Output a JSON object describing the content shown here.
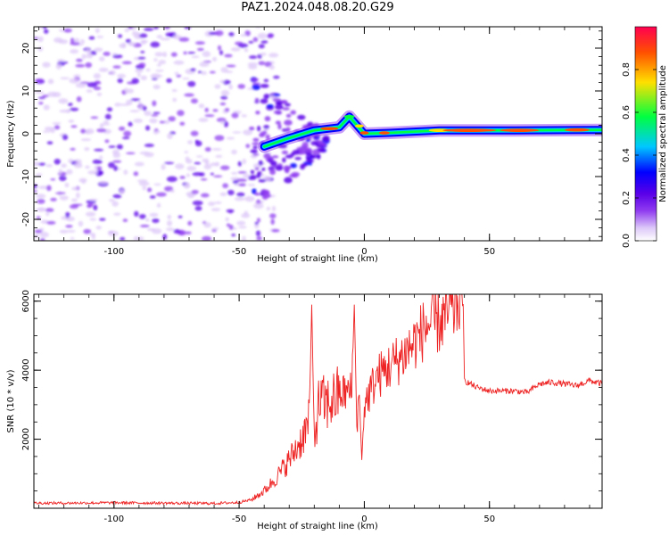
{
  "title": "PAZ1.2024.048.08.20.G29",
  "chart_data": [
    {
      "type": "heatmap",
      "xlabel": "Height of straight line (km)",
      "ylabel": "Frequency (Hz)",
      "xlim": [
        -132,
        95
      ],
      "ylim": [
        -25,
        25
      ],
      "xticks": [
        -100,
        -50,
        0,
        50
      ],
      "xtick_labels": [
        "-100",
        "-50",
        "0",
        "50"
      ],
      "yticks": [
        -20,
        -10,
        0,
        10,
        20
      ],
      "ytick_labels": [
        "-20",
        "-10",
        "0",
        "10",
        "20"
      ],
      "colorbar": {
        "label": "Normalized spectral amplitude",
        "range": [
          0.0,
          1.0
        ],
        "ticks": [
          0.0,
          0.2,
          0.4,
          0.6,
          0.8
        ],
        "tick_labels": [
          "0.0",
          "0.2",
          "0.4",
          "0.6",
          "0.8"
        ],
        "colormap": [
          "#ffffff",
          "#ddc8f8",
          "#8f3cf0",
          "#5a00e8",
          "#0000ff",
          "#00c8ff",
          "#00ff40",
          "#ffe000",
          "#ff5000",
          "#ff0050"
        ]
      },
      "features": {
        "noise_region_x": [
          -132,
          -45
        ],
        "transition_x": [
          -45,
          -15
        ],
        "carrier_trace": [
          {
            "x": -40,
            "y": -3
          },
          {
            "x": -30,
            "y": -1
          },
          {
            "x": -20,
            "y": 0.8
          },
          {
            "x": -10,
            "y": 1.5
          },
          {
            "x": -6,
            "y": 4
          },
          {
            "x": -3,
            "y": 2
          },
          {
            "x": 0,
            "y": 0
          },
          {
            "x": 10,
            "y": 0.2
          },
          {
            "x": 30,
            "y": 0.8
          },
          {
            "x": 60,
            "y": 0.8
          },
          {
            "x": 95,
            "y": 0.9
          }
        ]
      }
    },
    {
      "type": "line",
      "xlabel": "Height of straight line (km)",
      "ylabel": "SNR (10 * v/v)",
      "xlim": [
        -132,
        95
      ],
      "ylim": [
        0,
        6200
      ],
      "xticks": [
        -100,
        -50,
        0,
        50
      ],
      "xtick_labels": [
        "-100",
        "-50",
        "0",
        "50"
      ],
      "yticks": [
        2000,
        4000,
        6000
      ],
      "ytick_labels": [
        "2000",
        "4000",
        "6000"
      ],
      "line_color": "#ee2222",
      "series": [
        {
          "x": [
            -132,
            -120,
            -100,
            -80,
            -60,
            -50,
            -45,
            -40,
            -35,
            -30,
            -25,
            -22,
            -21,
            -20,
            -18,
            -15,
            -10,
            -5,
            -4,
            -3,
            -2,
            -1,
            0,
            5,
            10,
            15,
            20,
            25,
            30,
            35,
            38,
            39,
            39.5,
            40,
            45,
            50,
            60,
            65,
            70,
            75,
            80,
            85,
            90,
            95
          ],
          "values": [
            150,
            150,
            160,
            150,
            140,
            170,
            250,
            500,
            900,
            1400,
            2000,
            2500,
            5900,
            2000,
            3100,
            3000,
            3300,
            3400,
            5900,
            2500,
            3200,
            1400,
            3000,
            3800,
            4100,
            4400,
            4800,
            5300,
            5400,
            5700,
            6000,
            6200,
            5800,
            3700,
            3500,
            3400,
            3400,
            3350,
            3600,
            3650,
            3600,
            3550,
            3700,
            3600
          ]
        }
      ]
    }
  ]
}
